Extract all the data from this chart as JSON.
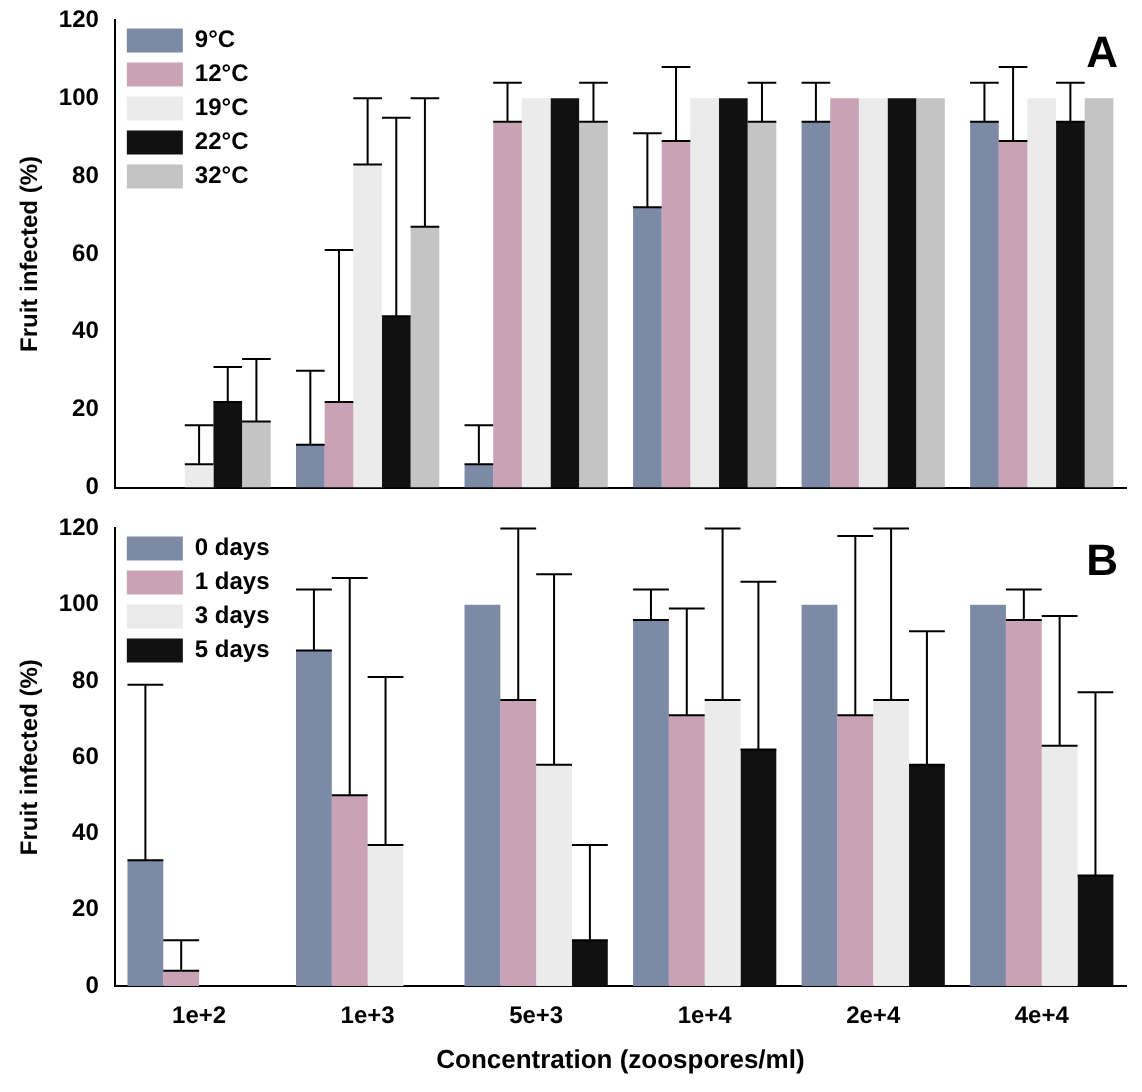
{
  "chart_data": [
    {
      "type": "bar",
      "ylabel": "Fruit infected (%)",
      "categories": [
        "1e+2",
        "1e+3",
        "5e+3",
        "1e+4",
        "2e+4",
        "4e+4"
      ],
      "ylim": [
        0,
        120
      ],
      "yticks": [
        0,
        20,
        40,
        60,
        80,
        100,
        120
      ],
      "tick_labels": "y",
      "legend": "top left",
      "grid": false,
      "annotations": [
        "A"
      ],
      "series": [
        {
          "name": "9°C",
          "color": "#7d8aa6",
          "values": [
            0,
            11,
            6,
            72,
            94,
            94
          ],
          "errors": [
            null,
            [
              11,
              30
            ],
            [
              6,
              16
            ],
            [
              72,
              91
            ],
            [
              94,
              104
            ],
            [
              94,
              104
            ]
          ]
        },
        {
          "name": "12°C",
          "color": "#c9a3b5",
          "values": [
            0,
            22,
            94,
            89,
            100,
            89
          ],
          "errors": [
            null,
            [
              22,
              61
            ],
            [
              94,
              104
            ],
            [
              89,
              108
            ],
            null,
            [
              89,
              108
            ]
          ]
        },
        {
          "name": "19°C",
          "color": "#ebebeb",
          "values": [
            6,
            83,
            100,
            100,
            100,
            100
          ],
          "errors": [
            [
              6,
              16
            ],
            [
              83,
              100
            ],
            null,
            null,
            null,
            null
          ]
        },
        {
          "name": "22°C",
          "color": "#111111",
          "values": [
            22,
            44,
            100,
            100,
            100,
            94
          ],
          "errors": [
            [
              22,
              31
            ],
            [
              44,
              95
            ],
            null,
            null,
            null,
            [
              94,
              104
            ]
          ]
        },
        {
          "name": "32°C",
          "color": "#c4c4c4",
          "values": [
            17,
            67,
            94,
            94,
            100,
            100
          ],
          "errors": [
            [
              17,
              33
            ],
            [
              67,
              100
            ],
            [
              94,
              104
            ],
            [
              94,
              104
            ],
            null,
            null
          ]
        }
      ]
    },
    {
      "type": "bar",
      "xlabel": "Concentration (zoospores/ml)",
      "ylabel": "Fruit infected (%)",
      "categories": [
        "1e+2",
        "1e+3",
        "5e+3",
        "1e+4",
        "2e+4",
        "4e+4"
      ],
      "ylim": [
        0,
        120
      ],
      "yticks": [
        0,
        20,
        40,
        60,
        80,
        100,
        120
      ],
      "legend": "top left",
      "grid": false,
      "annotations": [
        "B"
      ],
      "series": [
        {
          "name": "0 days",
          "color": "#7d8aa6",
          "values": [
            33,
            88,
            100,
            96,
            100,
            100
          ],
          "errors": [
            [
              33,
              79
            ],
            [
              88,
              104
            ],
            null,
            [
              96,
              104
            ],
            null,
            null
          ]
        },
        {
          "name": "1 days",
          "color": "#c9a3b5",
          "values": [
            4,
            50,
            75,
            71,
            71,
            96
          ],
          "errors": [
            [
              4,
              12
            ],
            [
              50,
              107
            ],
            [
              75,
              120
            ],
            [
              71,
              99
            ],
            [
              71,
              118
            ],
            [
              96,
              104
            ]
          ]
        },
        {
          "name": "3 days",
          "color": "#ebebeb",
          "values": [
            0,
            37,
            58,
            75,
            75,
            63
          ],
          "errors": [
            null,
            [
              37,
              81
            ],
            [
              58,
              108
            ],
            [
              75,
              120
            ],
            [
              75,
              120
            ],
            [
              63,
              97
            ]
          ]
        },
        {
          "name": "5 days",
          "color": "#111111",
          "values": [
            0,
            0,
            12,
            62,
            58,
            29
          ],
          "errors": [
            null,
            null,
            [
              12,
              37
            ],
            [
              62,
              106
            ],
            [
              58,
              93
            ],
            [
              29,
              77
            ]
          ]
        }
      ]
    }
  ]
}
